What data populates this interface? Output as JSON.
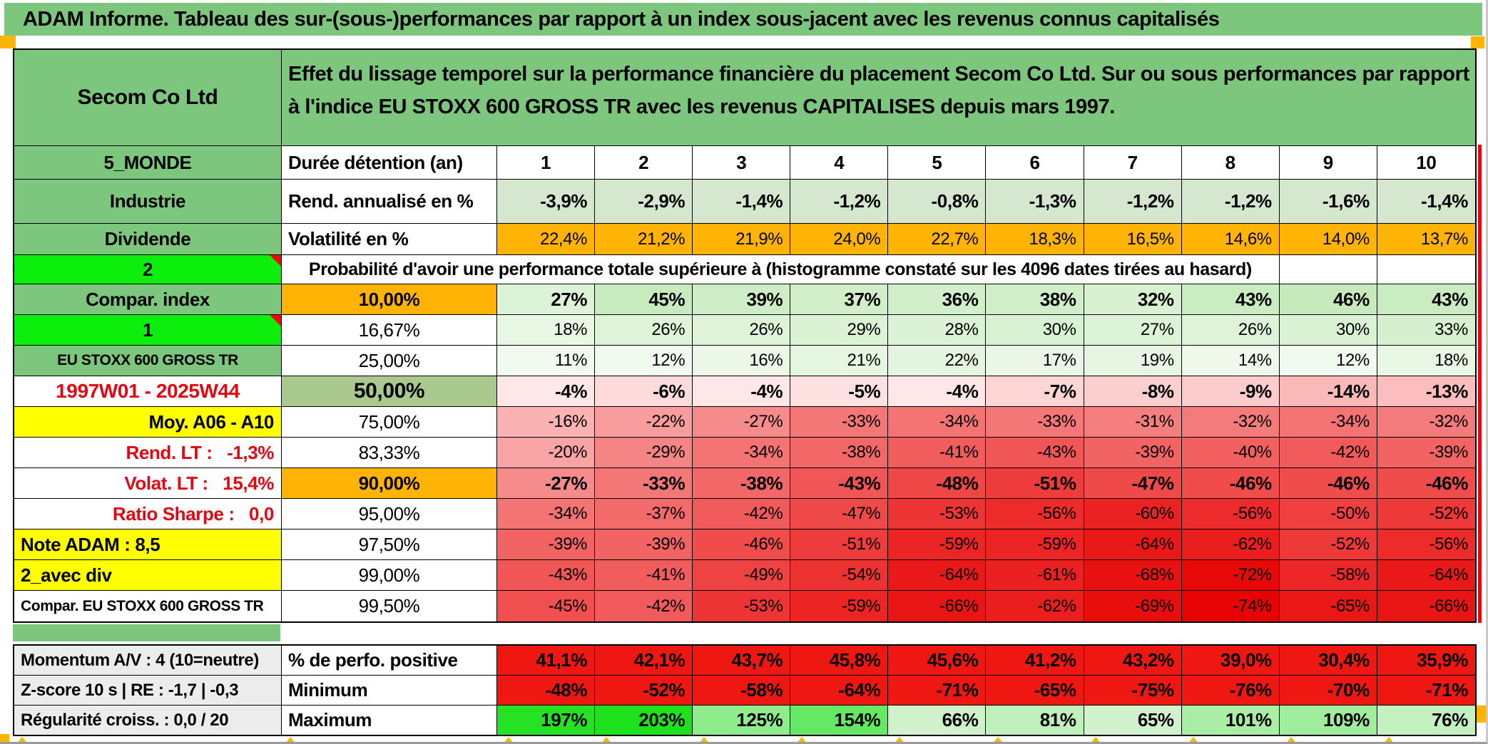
{
  "window": {
    "title": "ADAM Informe. Tableau des sur-(sous-)performances par rapport à un index sous-jacent avec les revenus connus capitalisés"
  },
  "colors": {
    "header_green": "#7dc67e",
    "bright_green": "#0cef0c",
    "orange": "#ffb405",
    "yellow": "#ffff00",
    "olive": "#a9c98f",
    "rend_bg": "#d5e7ce",
    "gray_label": "#ececec",
    "flat_red": "#ee1711",
    "marker_red": "#ff0000",
    "red_text": "#e30613"
  },
  "table": {
    "company": "Secom Co Ltd",
    "description": "Effet du lissage temporel sur la performance financière du placement Secom Co Ltd. Sur ou sous performances par rapport à l'indice EU STOXX 600 GROSS TR avec les revenus CAPITALISES depuis mars 1997.",
    "columns": [
      "1",
      "2",
      "3",
      "4",
      "5",
      "6",
      "7",
      "8",
      "9",
      "10"
    ],
    "prob_header": "Probabilité d'avoir une performance totale supérieure à (histogramme constaté sur les 4096 dates tirées au hasard)",
    "rows": [
      {
        "key": "duree",
        "label": {
          "text": "5_MONDE",
          "bg": "green"
        },
        "mid": {
          "text": "Durée détention (an)",
          "align": "left",
          "bold": true
        },
        "cells": {
          "type": "cols",
          "bold": true
        }
      },
      {
        "key": "rend",
        "label": {
          "text": "Industrie",
          "bg": "green"
        },
        "mid": {
          "text": "Rend. annualisé en %",
          "align": "left",
          "bold": true
        },
        "cells": {
          "type": "rend",
          "bold": true,
          "values": [
            "-3,9%",
            "-2,9%",
            "-1,4%",
            "-1,2%",
            "-0,8%",
            "-1,3%",
            "-1,2%",
            "-1,2%",
            "-1,6%",
            "-1,4%"
          ]
        }
      },
      {
        "key": "vol",
        "label": {
          "text": "Dividende",
          "bg": "green"
        },
        "mid": {
          "text": "Volatilité en %",
          "align": "left",
          "bold": true
        },
        "cells": {
          "type": "orange",
          "values": [
            "22,4%",
            "21,2%",
            "21,9%",
            "24,0%",
            "22,7%",
            "18,3%",
            "16,5%",
            "14,6%",
            "14,0%",
            "13,7%"
          ]
        }
      },
      {
        "key": "prob",
        "type": "probheader",
        "label": {
          "text": "2",
          "bg": "bright",
          "marker": true,
          "bold": true
        }
      },
      {
        "key": "p10",
        "label": {
          "text": "Compar. index",
          "bg": "green"
        },
        "mid": {
          "text": "10,00%",
          "bg": "orange",
          "bold": true
        },
        "cells": {
          "type": "prob",
          "bold": true,
          "values": [
            "27%",
            "45%",
            "39%",
            "37%",
            "36%",
            "38%",
            "32%",
            "43%",
            "46%",
            "43%"
          ]
        }
      },
      {
        "key": "p16",
        "label": {
          "text": "1",
          "bg": "bright",
          "marker": true,
          "bold": true
        },
        "mid": {
          "text": "16,67%"
        },
        "cells": {
          "type": "prob",
          "values": [
            "18%",
            "26%",
            "26%",
            "29%",
            "28%",
            "30%",
            "27%",
            "26%",
            "30%",
            "33%"
          ]
        }
      },
      {
        "key": "p25",
        "label": {
          "text": "EU STOXX 600 GROSS TR",
          "bg": "green",
          "size": 21
        },
        "mid": {
          "text": "25,00%"
        },
        "cells": {
          "type": "prob",
          "values": [
            "11%",
            "12%",
            "16%",
            "21%",
            "22%",
            "17%",
            "19%",
            "14%",
            "12%",
            "18%"
          ]
        }
      },
      {
        "key": "p50",
        "label": {
          "text": "1997W01 - 2025W44",
          "color": "red",
          "size": 28
        },
        "mid": {
          "text": "50,00%",
          "bg": "olive",
          "bold": true,
          "size": 30
        },
        "cells": {
          "type": "prob",
          "bold": true,
          "values": [
            "-4%",
            "-6%",
            "-4%",
            "-5%",
            "-4%",
            "-7%",
            "-8%",
            "-9%",
            "-14%",
            "-13%"
          ]
        }
      },
      {
        "key": "p75",
        "label": {
          "text": "Moy. A06 - A10",
          "bg": "yellow",
          "align": "right"
        },
        "mid": {
          "text": "75,00%"
        },
        "cells": {
          "type": "prob",
          "values": [
            "-16%",
            "-22%",
            "-27%",
            "-33%",
            "-34%",
            "-33%",
            "-31%",
            "-32%",
            "-34%",
            "-32%"
          ]
        }
      },
      {
        "key": "p83",
        "label": {
          "text": "Rend. LT :   -1,3%",
          "color": "red",
          "align": "right"
        },
        "mid": {
          "text": "83,33%"
        },
        "cells": {
          "type": "prob",
          "values": [
            "-20%",
            "-29%",
            "-34%",
            "-38%",
            "-41%",
            "-43%",
            "-39%",
            "-40%",
            "-42%",
            "-39%"
          ]
        }
      },
      {
        "key": "p90",
        "label": {
          "text": "Volat. LT :   15,4%",
          "color": "red",
          "align": "right"
        },
        "mid": {
          "text": "90,00%",
          "bg": "orange",
          "bold": true
        },
        "cells": {
          "type": "prob",
          "bold": true,
          "values": [
            "-27%",
            "-33%",
            "-38%",
            "-43%",
            "-48%",
            "-51%",
            "-47%",
            "-46%",
            "-46%",
            "-46%"
          ]
        }
      },
      {
        "key": "p95",
        "label": {
          "text": "Ratio Sharpe :   0,0",
          "color": "red",
          "align": "right"
        },
        "mid": {
          "text": "95,00%"
        },
        "cells": {
          "type": "prob",
          "values": [
            "-34%",
            "-37%",
            "-42%",
            "-47%",
            "-53%",
            "-56%",
            "-60%",
            "-56%",
            "-50%",
            "-52%"
          ]
        }
      },
      {
        "key": "p975",
        "label": {
          "text": "Note ADAM : 8,5",
          "bg": "yellow",
          "align": "left"
        },
        "mid": {
          "text": "97,50%"
        },
        "cells": {
          "type": "prob",
          "values": [
            "-39%",
            "-39%",
            "-46%",
            "-51%",
            "-59%",
            "-59%",
            "-64%",
            "-62%",
            "-52%",
            "-56%"
          ]
        }
      },
      {
        "key": "p99",
        "label": {
          "text": "2_avec div",
          "bg": "yellow",
          "align": "left"
        },
        "mid": {
          "text": "99,00%"
        },
        "cells": {
          "type": "prob",
          "values": [
            "-43%",
            "-41%",
            "-49%",
            "-54%",
            "-64%",
            "-61%",
            "-68%",
            "-72%",
            "-58%",
            "-64%"
          ]
        }
      },
      {
        "key": "p995",
        "label": {
          "text": "Compar. EU STOXX 600 GROSS TR",
          "align": "left",
          "size": 21
        },
        "mid": {
          "text": "99,50%"
        },
        "cells": {
          "type": "prob",
          "values": [
            "-45%",
            "-42%",
            "-53%",
            "-59%",
            "-66%",
            "-62%",
            "-69%",
            "-74%",
            "-65%",
            "-66%"
          ]
        }
      }
    ],
    "bottom_rows": [
      {
        "key": "perfo",
        "label": {
          "text": "Momentum A/V : 4 (10=neutre)",
          "bg": "gray",
          "align": "left",
          "size": 24
        },
        "mid": {
          "text": "% de perfo. positive",
          "align": "left",
          "bold": true
        },
        "cells": {
          "type": "flatred",
          "bold": true,
          "values": [
            "41,1%",
            "42,1%",
            "43,7%",
            "45,8%",
            "45,6%",
            "41,2%",
            "43,2%",
            "39,0%",
            "30,4%",
            "35,9%"
          ]
        }
      },
      {
        "key": "min",
        "label": {
          "text": "Z-score 10 s | RE : -1,7 | -0,3",
          "bg": "gray",
          "align": "left",
          "size": 24
        },
        "mid": {
          "text": "Minimum",
          "align": "left",
          "bold": true
        },
        "cells": {
          "type": "flatred",
          "bold": true,
          "values": [
            "-48%",
            "-52%",
            "-58%",
            "-64%",
            "-71%",
            "-65%",
            "-75%",
            "-76%",
            "-70%",
            "-71%"
          ]
        }
      },
      {
        "key": "max",
        "label": {
          "text": "Régularité croiss. : 0,0 / 20",
          "bg": "gray",
          "align": "left",
          "size": 24
        },
        "mid": {
          "text": "Maximum",
          "align": "left",
          "bold": true
        },
        "cells": {
          "type": "max",
          "bold": true,
          "values": [
            "197%",
            "203%",
            "125%",
            "154%",
            "66%",
            "81%",
            "65%",
            "101%",
            "109%",
            "76%"
          ]
        }
      }
    ]
  }
}
